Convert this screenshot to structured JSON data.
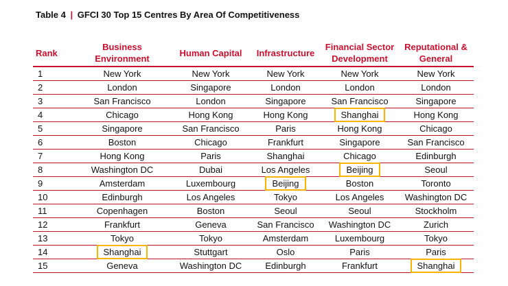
{
  "title": {
    "table_label": "Table 4",
    "separator": "|",
    "heading": "GFCI 30 Top 15 Centres By Area Of Competitiveness"
  },
  "highlight_color": "#f6b400",
  "accent_color": "#c8102e",
  "columns": [
    "Rank",
    "Business Environment",
    "Human Capital",
    "Infrastructure",
    "Financial Sector Development",
    "Reputational & General"
  ],
  "rows": [
    {
      "rank": "1",
      "cells": [
        "New York",
        "New York",
        "New York",
        "New York",
        "New York"
      ],
      "highlight": [
        false,
        false,
        false,
        false,
        false
      ]
    },
    {
      "rank": "2",
      "cells": [
        "London",
        "Singapore",
        "London",
        "London",
        "London"
      ],
      "highlight": [
        false,
        false,
        false,
        false,
        false
      ]
    },
    {
      "rank": "3",
      "cells": [
        "San Francisco",
        "London",
        "Singapore",
        "San Francisco",
        "Singapore"
      ],
      "highlight": [
        false,
        false,
        false,
        false,
        false
      ]
    },
    {
      "rank": "4",
      "cells": [
        "Chicago",
        "Hong Kong",
        "Hong Kong",
        "Shanghai",
        "Hong Kong"
      ],
      "highlight": [
        false,
        false,
        false,
        true,
        false
      ]
    },
    {
      "rank": "5",
      "cells": [
        "Singapore",
        "San Francisco",
        "Paris",
        "Hong Kong",
        "Chicago"
      ],
      "highlight": [
        false,
        false,
        false,
        false,
        false
      ]
    },
    {
      "rank": "6",
      "cells": [
        "Boston",
        "Chicago",
        "Frankfurt",
        "Singapore",
        "San Francisco"
      ],
      "highlight": [
        false,
        false,
        false,
        false,
        false
      ]
    },
    {
      "rank": "7",
      "cells": [
        "Hong Kong",
        "Paris",
        "Shanghai",
        "Chicago",
        "Edinburgh"
      ],
      "highlight": [
        false,
        false,
        false,
        false,
        false
      ]
    },
    {
      "rank": "8",
      "cells": [
        "Washington DC",
        "Dubai",
        "Los Angeles",
        "Beijing",
        "Seoul"
      ],
      "highlight": [
        false,
        false,
        false,
        true,
        false
      ]
    },
    {
      "rank": "9",
      "cells": [
        "Amsterdam",
        "Luxembourg",
        "Beijing",
        "Boston",
        "Toronto"
      ],
      "highlight": [
        false,
        false,
        true,
        false,
        false
      ]
    },
    {
      "rank": "10",
      "cells": [
        "Edinburgh",
        "Los Angeles",
        "Tokyo",
        "Los Angeles",
        "Washington DC"
      ],
      "highlight": [
        false,
        false,
        false,
        false,
        false
      ]
    },
    {
      "rank": "11",
      "cells": [
        "Copenhagen",
        "Boston",
        "Seoul",
        "Seoul",
        "Stockholm"
      ],
      "highlight": [
        false,
        false,
        false,
        false,
        false
      ]
    },
    {
      "rank": "12",
      "cells": [
        "Frankfurt",
        "Geneva",
        "San Francisco",
        "Washington DC",
        "Zurich"
      ],
      "highlight": [
        false,
        false,
        false,
        false,
        false
      ]
    },
    {
      "rank": "13",
      "cells": [
        "Tokyo",
        "Tokyo",
        "Amsterdam",
        "Luxembourg",
        "Tokyo"
      ],
      "highlight": [
        false,
        false,
        false,
        false,
        false
      ]
    },
    {
      "rank": "14",
      "cells": [
        "Shanghai",
        "Stuttgart",
        "Oslo",
        "Paris",
        "Paris"
      ],
      "highlight": [
        true,
        false,
        false,
        false,
        false
      ]
    },
    {
      "rank": "15",
      "cells": [
        "Geneva",
        "Washington DC",
        "Edinburgh",
        "Frankfurt",
        "Shanghai"
      ],
      "highlight": [
        false,
        false,
        false,
        false,
        true
      ]
    }
  ]
}
